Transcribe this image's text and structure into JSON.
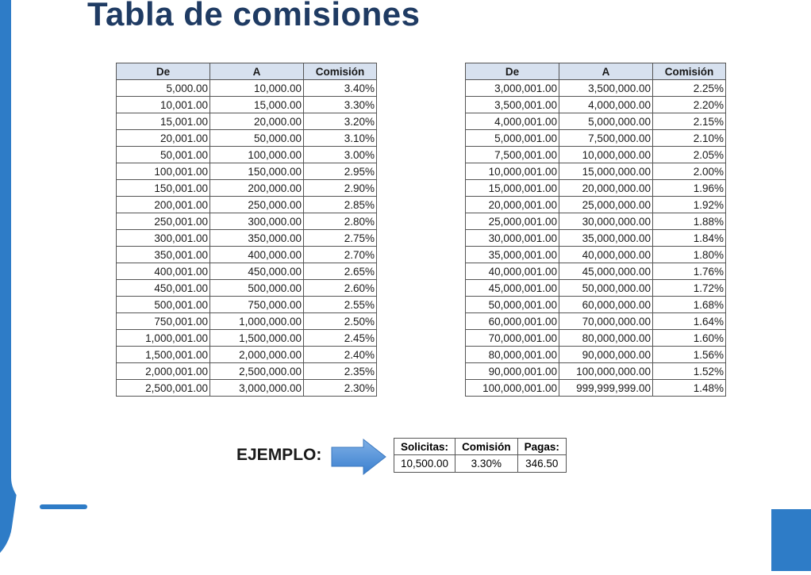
{
  "title": "Tabla de comisiones",
  "headers": {
    "from": "De",
    "to": "A",
    "commission": "Comisión"
  },
  "left_rows": [
    [
      "5,000.00",
      "10,000.00",
      "3.40%"
    ],
    [
      "10,001.00",
      "15,000.00",
      "3.30%"
    ],
    [
      "15,001.00",
      "20,000.00",
      "3.20%"
    ],
    [
      "20,001.00",
      "50,000.00",
      "3.10%"
    ],
    [
      "50,001.00",
      "100,000.00",
      "3.00%"
    ],
    [
      "100,001.00",
      "150,000.00",
      "2.95%"
    ],
    [
      "150,001.00",
      "200,000.00",
      "2.90%"
    ],
    [
      "200,001.00",
      "250,000.00",
      "2.85%"
    ],
    [
      "250,001.00",
      "300,000.00",
      "2.80%"
    ],
    [
      "300,001.00",
      "350,000.00",
      "2.75%"
    ],
    [
      "350,001.00",
      "400,000.00",
      "2.70%"
    ],
    [
      "400,001.00",
      "450,000.00",
      "2.65%"
    ],
    [
      "450,001.00",
      "500,000.00",
      "2.60%"
    ],
    [
      "500,001.00",
      "750,000.00",
      "2.55%"
    ],
    [
      "750,001.00",
      "1,000,000.00",
      "2.50%"
    ],
    [
      "1,000,001.00",
      "1,500,000.00",
      "2.45%"
    ],
    [
      "1,500,001.00",
      "2,000,000.00",
      "2.40%"
    ],
    [
      "2,000,001.00",
      "2,500,000.00",
      "2.35%"
    ],
    [
      "2,500,001.00",
      "3,000,000.00",
      "2.30%"
    ]
  ],
  "right_rows": [
    [
      "3,000,001.00",
      "3,500,000.00",
      "2.25%"
    ],
    [
      "3,500,001.00",
      "4,000,000.00",
      "2.20%"
    ],
    [
      "4,000,001.00",
      "5,000,000.00",
      "2.15%"
    ],
    [
      "5,000,001.00",
      "7,500,000.00",
      "2.10%"
    ],
    [
      "7,500,001.00",
      "10,000,000.00",
      "2.05%"
    ],
    [
      "10,000,001.00",
      "15,000,000.00",
      "2.00%"
    ],
    [
      "15,000,001.00",
      "20,000,000.00",
      "1.96%"
    ],
    [
      "20,000,001.00",
      "25,000,000.00",
      "1.92%"
    ],
    [
      "25,000,001.00",
      "30,000,000.00",
      "1.88%"
    ],
    [
      "30,000,001.00",
      "35,000,000.00",
      "1.84%"
    ],
    [
      "35,000,001.00",
      "40,000,000.00",
      "1.80%"
    ],
    [
      "40,000,001.00",
      "45,000,000.00",
      "1.76%"
    ],
    [
      "45,000,001.00",
      "50,000,000.00",
      "1.72%"
    ],
    [
      "50,000,001.00",
      "60,000,000.00",
      "1.68%"
    ],
    [
      "60,000,001.00",
      "70,000,000.00",
      "1.64%"
    ],
    [
      "70,000,001.00",
      "80,000,000.00",
      "1.60%"
    ],
    [
      "80,000,001.00",
      "90,000,000.00",
      "1.56%"
    ],
    [
      "90,000,001.00",
      "100,000,000.00",
      "1.52%"
    ],
    [
      "100,000,001.00",
      "999,999,999.00",
      "1.48%"
    ]
  ],
  "example": {
    "label": "EJEMPLO:",
    "headers": [
      "Solicitas:",
      "Comisión",
      "Pagas:"
    ],
    "values": [
      "10,500.00",
      "3.30%",
      "346.50"
    ]
  },
  "colors": {
    "accent": "#2e7cc7",
    "title": "#1f3b63",
    "header_bg": "#d7e1ef"
  }
}
